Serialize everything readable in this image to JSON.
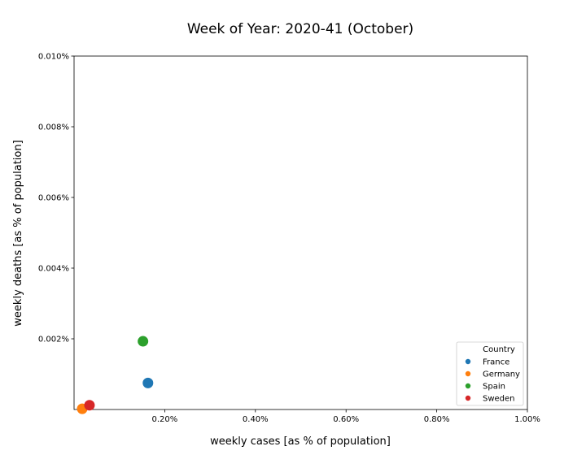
{
  "chart_data": {
    "type": "scatter",
    "title": "Week of Year: 2020-41 (October)",
    "xlabel": "weekly cases [as % of population]",
    "ylabel": "weekly deaths [as % of population]",
    "xlim": [
      0.0,
      1.0
    ],
    "ylim": [
      0.0,
      0.01
    ],
    "x_ticks": [
      {
        "value": 0.2,
        "label": "0.20%"
      },
      {
        "value": 0.4,
        "label": "0.40%"
      },
      {
        "value": 0.6,
        "label": "0.60%"
      },
      {
        "value": 0.8,
        "label": "0.80%"
      },
      {
        "value": 1.0,
        "label": "1.00%"
      }
    ],
    "y_ticks": [
      {
        "value": 0.002,
        "label": "0.002%"
      },
      {
        "value": 0.004,
        "label": "0.004%"
      },
      {
        "value": 0.006,
        "label": "0.006%"
      },
      {
        "value": 0.008,
        "label": "0.008%"
      },
      {
        "value": 0.01,
        "label": "0.010%"
      }
    ],
    "grid": false,
    "legend": {
      "title": "Country",
      "position": "lower-right"
    },
    "series": [
      {
        "name": "France",
        "color": "#1f77b4",
        "x": 0.163,
        "y": 0.00075
      },
      {
        "name": "Germany",
        "color": "#ff7f0e",
        "x": 0.018,
        "y": 2e-05
      },
      {
        "name": "Spain",
        "color": "#2ca02c",
        "x": 0.152,
        "y": 0.00193
      },
      {
        "name": "Sweden",
        "color": "#d62728",
        "x": 0.034,
        "y": 0.00012
      }
    ]
  }
}
